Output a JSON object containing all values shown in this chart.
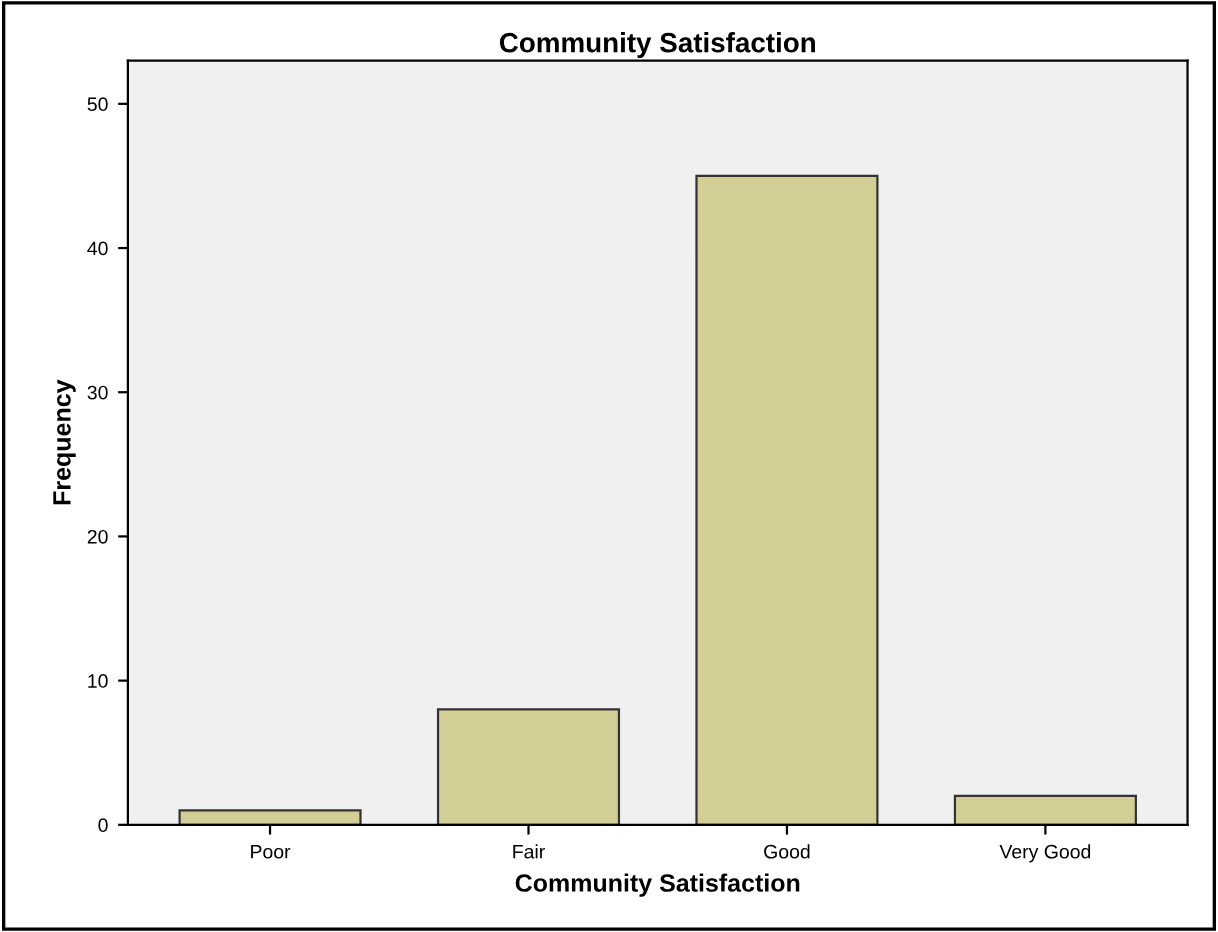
{
  "chart_data": {
    "type": "bar",
    "title": "Community Satisfaction",
    "xlabel": "Community Satisfaction",
    "ylabel": "Frequency",
    "categories": [
      "Poor",
      "Fair",
      "Good",
      "Very Good"
    ],
    "values": [
      1,
      8,
      45,
      2
    ],
    "color": "#d3ce96",
    "ylim": [
      0,
      53
    ],
    "yticks": [
      0,
      10,
      20,
      30,
      40,
      50
    ],
    "grid": false,
    "legend": false
  }
}
